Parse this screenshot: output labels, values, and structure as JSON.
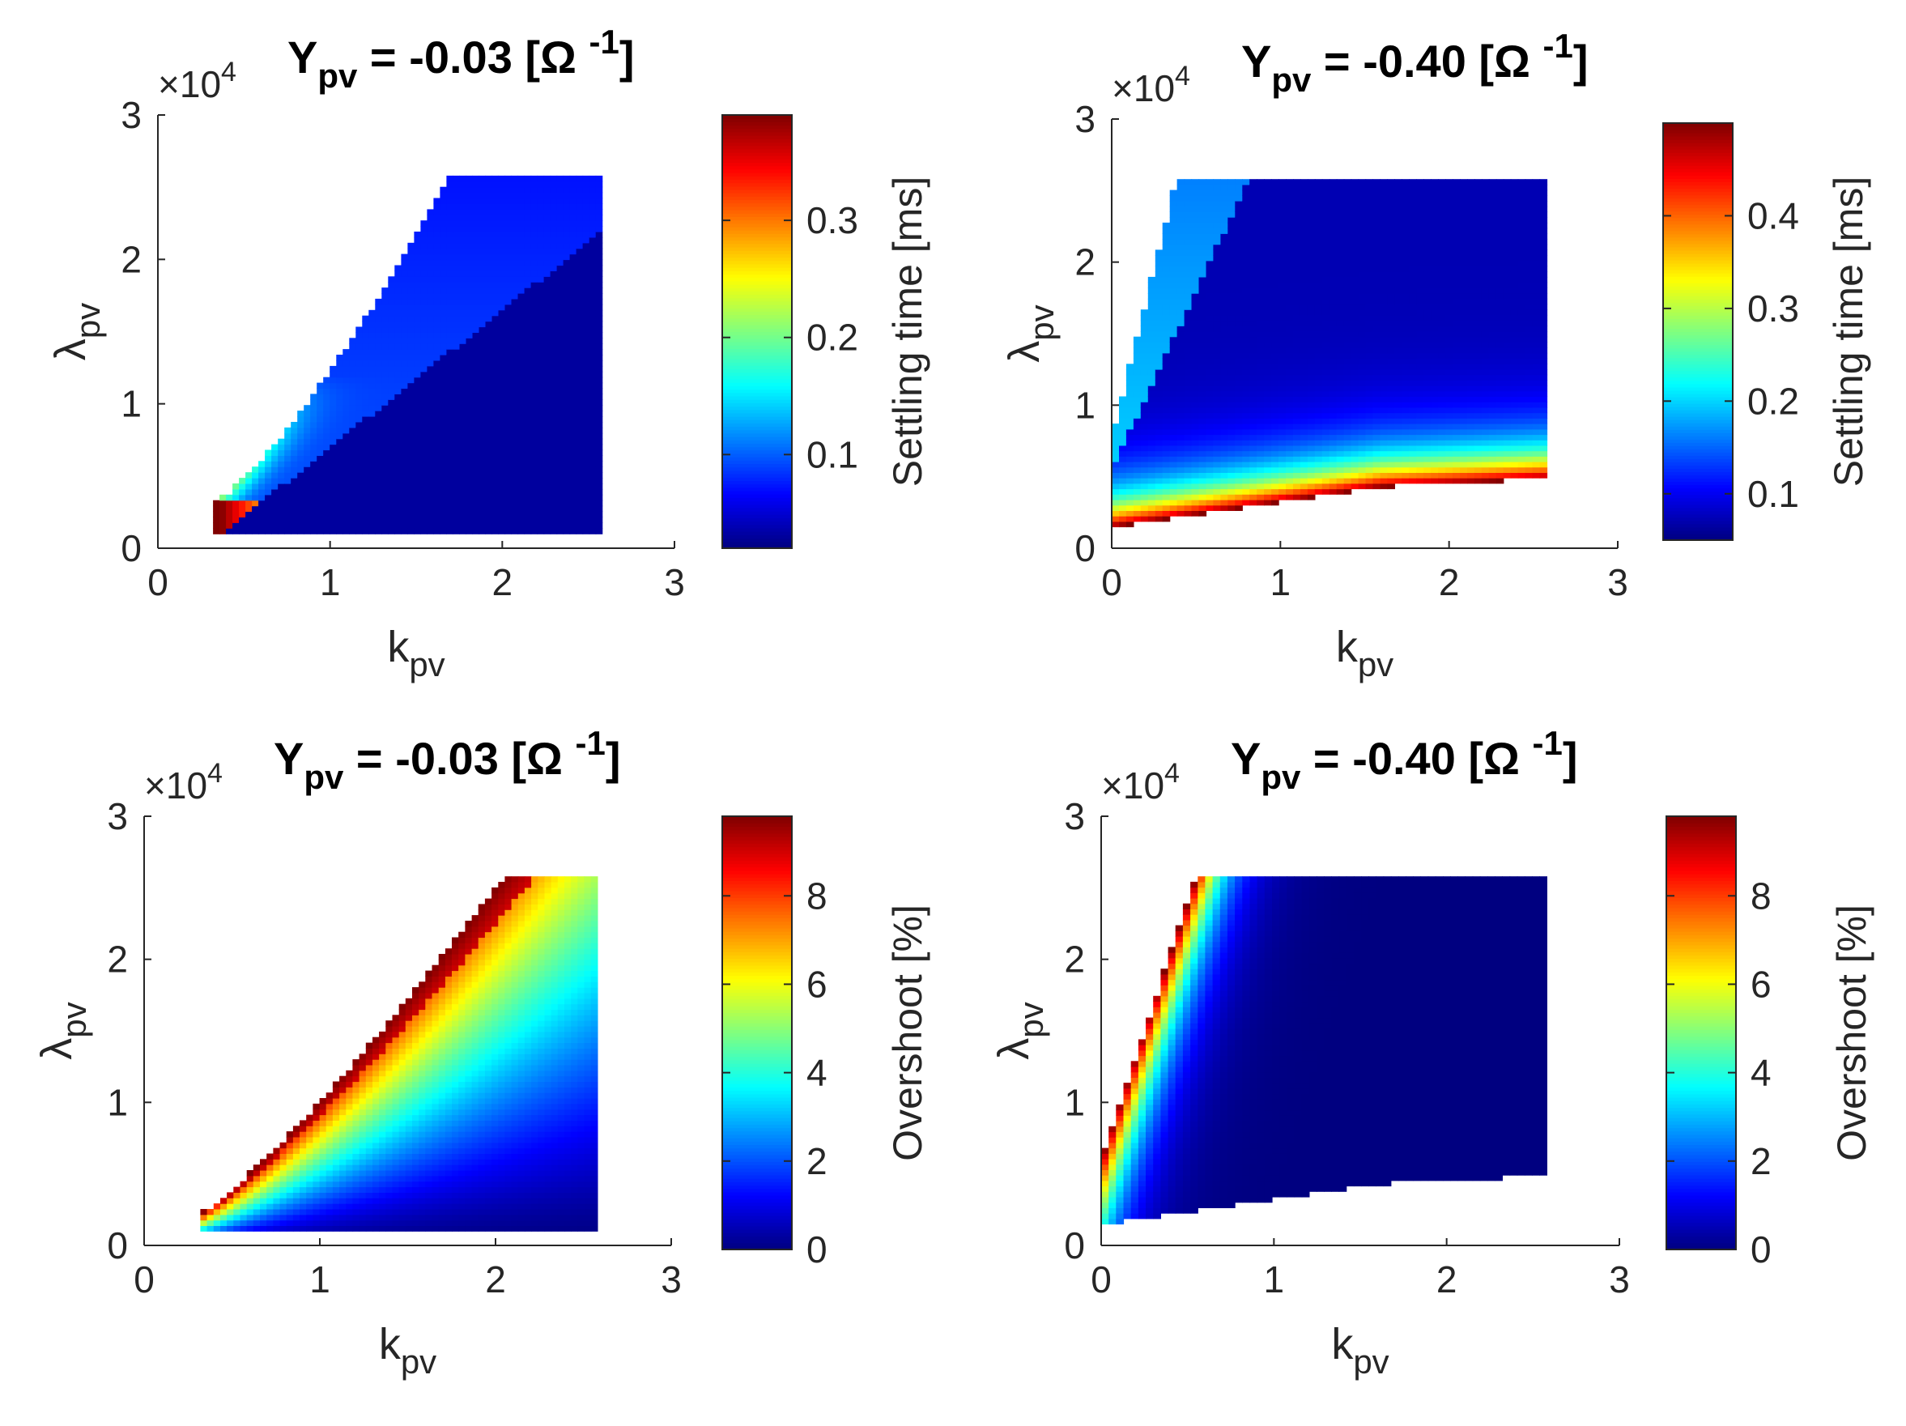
{
  "figure_title": "",
  "chart_data": [
    {
      "type": "heatmap",
      "title": {
        "symbol": "Y",
        "sub": "pv",
        "eq": " = -0.03 [",
        "unit": "Ω",
        "sup": "-1",
        "close": "]"
      },
      "xlabel": {
        "symbol": "k",
        "sub": "pv"
      },
      "ylabel": {
        "symbol": "λ",
        "sub": "pv"
      },
      "y_exponent": "×10",
      "y_exponent_power": "4",
      "xlim": [
        0,
        3
      ],
      "ylim": [
        0,
        3
      ],
      "xticks": [
        "0",
        "1",
        "2",
        "3"
      ],
      "yticks": [
        "0",
        "1",
        "2",
        "3"
      ],
      "colorbar": {
        "label": "Settling time [ms]",
        "ticks": [
          "0.1",
          "0.2",
          "0.3"
        ],
        "tick_values": [
          0.1,
          0.2,
          0.3
        ],
        "range": [
          0.02,
          0.39
        ]
      },
      "region": {
        "k_min": 0.32,
        "k_max": 2.58,
        "lambda_min": 0.1,
        "lambda_max": 2.58
      },
      "colormap": "jet",
      "metric": "settling_low_damping"
    },
    {
      "type": "heatmap",
      "title": {
        "symbol": "Y",
        "sub": "pv",
        "eq": " = -0.40 [",
        "unit": "Ω",
        "sup": "-1",
        "close": "]"
      },
      "xlabel": {
        "symbol": "k",
        "sub": "pv"
      },
      "ylabel": {
        "symbol": "λ",
        "sub": "pv"
      },
      "y_exponent": "×10",
      "y_exponent_power": "4",
      "xlim": [
        0,
        3
      ],
      "ylim": [
        0,
        3
      ],
      "xticks": [
        "0",
        "1",
        "2",
        "3"
      ],
      "yticks": [
        "0",
        "1",
        "2",
        "3"
      ],
      "colorbar": {
        "label": "Settling time [ms]",
        "ticks": [
          "0.1",
          "0.2",
          "0.3",
          "0.4"
        ],
        "tick_values": [
          0.1,
          0.2,
          0.3,
          0.4
        ],
        "range": [
          0.05,
          0.5
        ]
      },
      "region": {
        "k_min": 0.0,
        "k_max": 2.58,
        "lambda_min": 0.15,
        "lambda_max": 2.58
      },
      "colormap": "jet",
      "metric": "settling_high_damping"
    },
    {
      "type": "heatmap",
      "title": {
        "symbol": "Y",
        "sub": "pv",
        "eq": " = -0.03 [",
        "unit": "Ω",
        "sup": "-1",
        "close": "]"
      },
      "xlabel": {
        "symbol": "k",
        "sub": "pv"
      },
      "ylabel": {
        "symbol": "λ",
        "sub": "pv"
      },
      "y_exponent": "×10",
      "y_exponent_power": "4",
      "xlim": [
        0,
        3
      ],
      "ylim": [
        0,
        3
      ],
      "xticks": [
        "0",
        "1",
        "2",
        "3"
      ],
      "yticks": [
        "0",
        "1",
        "2",
        "3"
      ],
      "colorbar": {
        "label": "Overshoot [%]",
        "ticks": [
          "0",
          "2",
          "4",
          "6",
          "8"
        ],
        "tick_values": [
          0,
          2,
          4,
          6,
          8
        ],
        "range": [
          0,
          9.8
        ]
      },
      "region": {
        "k_min": 0.32,
        "k_max": 2.58,
        "lambda_min": 0.1,
        "lambda_max": 2.58
      },
      "colormap": "jet",
      "metric": "overshoot_low_damping"
    },
    {
      "type": "heatmap",
      "title": {
        "symbol": "Y",
        "sub": "pv",
        "eq": " = -0.40 [",
        "unit": "Ω",
        "sup": "-1",
        "close": "]"
      },
      "xlabel": {
        "symbol": "k",
        "sub": "pv"
      },
      "ylabel": {
        "symbol": "λ",
        "sub": "pv"
      },
      "y_exponent": "×10",
      "y_exponent_power": "4",
      "xlim": [
        0,
        3
      ],
      "ylim": [
        0,
        3
      ],
      "xticks": [
        "0",
        "1",
        "2",
        "3"
      ],
      "yticks": [
        "0",
        "1",
        "2",
        "3"
      ],
      "colorbar": {
        "label": "Overshoot [%]",
        "ticks": [
          "0",
          "2",
          "4",
          "6",
          "8"
        ],
        "tick_values": [
          0,
          2,
          4,
          6,
          8
        ],
        "range": [
          0,
          9.8
        ]
      },
      "region": {
        "k_min": 0.0,
        "k_max": 2.58,
        "lambda_min": 0.15,
        "lambda_max": 2.58
      },
      "colormap": "jet",
      "metric": "overshoot_high_damping"
    }
  ]
}
